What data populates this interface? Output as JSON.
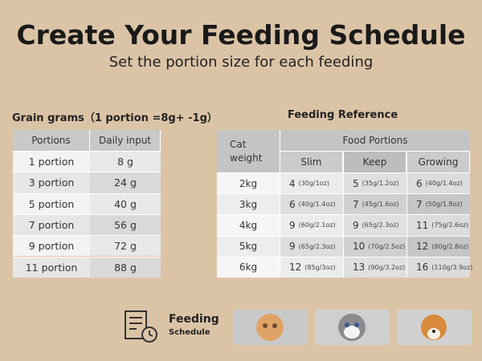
{
  "header": {
    "title": "Create Your Feeding Schedule",
    "subtitle": "Set the portion size for each feeding"
  },
  "grain_table": {
    "title": "Grain grams（1 portion =8g+ -1g）",
    "columns": [
      "Portions",
      "Daily input"
    ],
    "rows": [
      [
        "1 portion",
        "8 g"
      ],
      [
        "3 portion",
        "24 g"
      ],
      [
        "5 portion",
        "40 g"
      ],
      [
        "7 portion",
        "56 g"
      ],
      [
        "9 portion",
        "72 g"
      ],
      [
        "11 portion",
        "88 g"
      ]
    ]
  },
  "reference_table": {
    "title": "Feeding Reference",
    "weight_header": "Cat weight",
    "portions_header": "Food Portions",
    "columns": [
      "Slim",
      "Keep",
      "Growing"
    ],
    "rows": [
      {
        "weight": "2kg",
        "cells": [
          {
            "portions": "4",
            "amount": "(30g/1oz)"
          },
          {
            "portions": "5",
            "amount": "(35g/1.2oz)"
          },
          {
            "portions": "6",
            "amount": "(40g/1.4oz)"
          }
        ]
      },
      {
        "weight": "3kg",
        "cells": [
          {
            "portions": "6",
            "amount": "(40g/1.4oz)"
          },
          {
            "portions": "7",
            "amount": "(45g/1.6oz)"
          },
          {
            "portions": "7",
            "amount": "(50g/1.8oz)"
          }
        ]
      },
      {
        "weight": "4kg",
        "cells": [
          {
            "portions": "9",
            "amount": "(60g/2.1oz)"
          },
          {
            "portions": "9",
            "amount": "(65g/2.3oz)"
          },
          {
            "portions": "11",
            "amount": "(75g/2.6oz)"
          }
        ]
      },
      {
        "weight": "5kg",
        "cells": [
          {
            "portions": "9",
            "amount": "(65g/2.3oz)"
          },
          {
            "portions": "10",
            "amount": "(70g/2.5oz)"
          },
          {
            "portions": "12",
            "amount": "(80g/2.8oz)"
          }
        ]
      },
      {
        "weight": "6kg",
        "cells": [
          {
            "portions": "12",
            "amount": "(85g/3oz)"
          },
          {
            "portions": "13",
            "amount": "(90g/3.2oz)"
          },
          {
            "portions": "16",
            "amount": "(110g/3.9oz)"
          }
        ]
      }
    ]
  },
  "footer": {
    "label": "Feeding",
    "sublabel": "Schedule"
  }
}
